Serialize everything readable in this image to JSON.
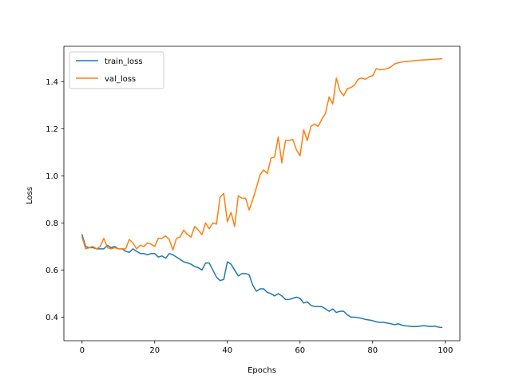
{
  "chart_data": {
    "type": "line",
    "title": "",
    "xlabel": "Epochs",
    "ylabel": "Loss",
    "xlim": [
      -5,
      104
    ],
    "ylim": [
      0.3,
      1.55
    ],
    "xticks": [
      0,
      20,
      40,
      60,
      80,
      100
    ],
    "yticks": [
      0.4,
      0.6,
      0.8,
      1.0,
      1.2,
      1.4
    ],
    "xtick_labels": [
      "0",
      "20",
      "40",
      "60",
      "80",
      "100"
    ],
    "ytick_labels": [
      "0.4",
      "0.6",
      "0.8",
      "1.0",
      "1.2",
      "1.4"
    ],
    "grid": false,
    "legend": {
      "position": "top-left"
    },
    "x": [
      0,
      1,
      2,
      3,
      4,
      5,
      6,
      7,
      8,
      9,
      10,
      11,
      12,
      13,
      14,
      15,
      16,
      17,
      18,
      19,
      20,
      21,
      22,
      23,
      24,
      25,
      26,
      27,
      28,
      29,
      30,
      31,
      32,
      33,
      34,
      35,
      36,
      37,
      38,
      39,
      40,
      41,
      42,
      43,
      44,
      45,
      46,
      47,
      48,
      49,
      50,
      51,
      52,
      53,
      54,
      55,
      56,
      57,
      58,
      59,
      60,
      61,
      62,
      63,
      64,
      65,
      66,
      67,
      68,
      69,
      70,
      71,
      72,
      73,
      74,
      75,
      76,
      77,
      78,
      79,
      80,
      81,
      82,
      83,
      84,
      85,
      86,
      87,
      88,
      89,
      90,
      91,
      92,
      93,
      94,
      95,
      96,
      97,
      98,
      99
    ],
    "series": [
      {
        "name": "train_loss",
        "color": "#1f77b4",
        "values": [
          0.75,
          0.7,
          0.695,
          0.695,
          0.69,
          0.69,
          0.69,
          0.705,
          0.695,
          0.7,
          0.69,
          0.69,
          0.68,
          0.675,
          0.69,
          0.68,
          0.67,
          0.67,
          0.665,
          0.67,
          0.67,
          0.655,
          0.66,
          0.65,
          0.67,
          0.665,
          0.655,
          0.645,
          0.635,
          0.63,
          0.625,
          0.615,
          0.61,
          0.6,
          0.63,
          0.63,
          0.6,
          0.57,
          0.555,
          0.56,
          0.635,
          0.625,
          0.6,
          0.575,
          0.585,
          0.585,
          0.58,
          0.535,
          0.51,
          0.52,
          0.52,
          0.505,
          0.5,
          0.49,
          0.5,
          0.49,
          0.475,
          0.475,
          0.48,
          0.485,
          0.48,
          0.46,
          0.465,
          0.45,
          0.445,
          0.445,
          0.445,
          0.435,
          0.425,
          0.435,
          0.42,
          0.425,
          0.425,
          0.41,
          0.4,
          0.4,
          0.398,
          0.395,
          0.39,
          0.388,
          0.385,
          0.38,
          0.378,
          0.378,
          0.375,
          0.372,
          0.368,
          0.372,
          0.366,
          0.363,
          0.362,
          0.36,
          0.36,
          0.362,
          0.364,
          0.362,
          0.36,
          0.362,
          0.358,
          0.356
        ]
      },
      {
        "name": "val_loss",
        "color": "#ff7f0e",
        "values": [
          0.74,
          0.69,
          0.695,
          0.7,
          0.69,
          0.7,
          0.735,
          0.695,
          0.69,
          0.695,
          0.69,
          0.69,
          0.69,
          0.73,
          0.715,
          0.69,
          0.705,
          0.7,
          0.715,
          0.71,
          0.7,
          0.735,
          0.735,
          0.745,
          0.73,
          0.685,
          0.735,
          0.74,
          0.77,
          0.75,
          0.74,
          0.785,
          0.77,
          0.75,
          0.8,
          0.775,
          0.8,
          0.795,
          0.91,
          0.925,
          0.805,
          0.845,
          0.785,
          0.915,
          0.905,
          0.905,
          0.855,
          0.9,
          0.95,
          1.005,
          1.025,
          1.01,
          1.075,
          1.08,
          1.165,
          1.055,
          1.15,
          1.15,
          1.155,
          1.11,
          1.085,
          1.195,
          1.15,
          1.21,
          1.22,
          1.21,
          1.24,
          1.265,
          1.335,
          1.305,
          1.415,
          1.36,
          1.34,
          1.37,
          1.375,
          1.385,
          1.41,
          1.415,
          1.41,
          1.42,
          1.425,
          1.455,
          1.45,
          1.452,
          1.455,
          1.462,
          1.475,
          1.48,
          1.483,
          1.485,
          1.486,
          1.488,
          1.49,
          1.491,
          1.492,
          1.493,
          1.494,
          1.495,
          1.496,
          1.497
        ]
      }
    ]
  }
}
